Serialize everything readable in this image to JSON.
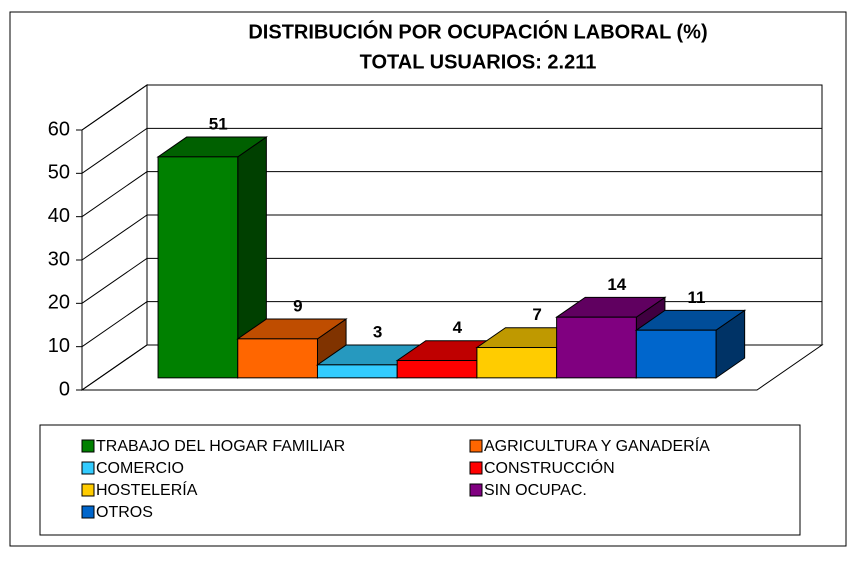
{
  "chart_data": {
    "type": "bar3d",
    "title": "DISTRIBUCIÓN POR OCUPACIÓN LABORAL (%)",
    "subtitle": "TOTAL USUARIOS: 2.211",
    "categories": [
      "TRABAJO DEL HOGAR FAMILIAR",
      "AGRICULTURA Y GANADERÍA",
      "COMERCIO",
      "CONSTRUCCIÓN",
      "HOSTELERÍA",
      "SIN OCUPAC.",
      "OTROS"
    ],
    "values": [
      51,
      9,
      3,
      4,
      7,
      14,
      11
    ],
    "colors": [
      "#008000",
      "#FF6600",
      "#33CCFF",
      "#FF0000",
      "#FFCC00",
      "#800080",
      "#0066CC"
    ],
    "ylim": [
      0,
      60
    ],
    "yticks": [
      0,
      10,
      20,
      30,
      40,
      50,
      60
    ],
    "grid": true,
    "legend": "bottom"
  }
}
